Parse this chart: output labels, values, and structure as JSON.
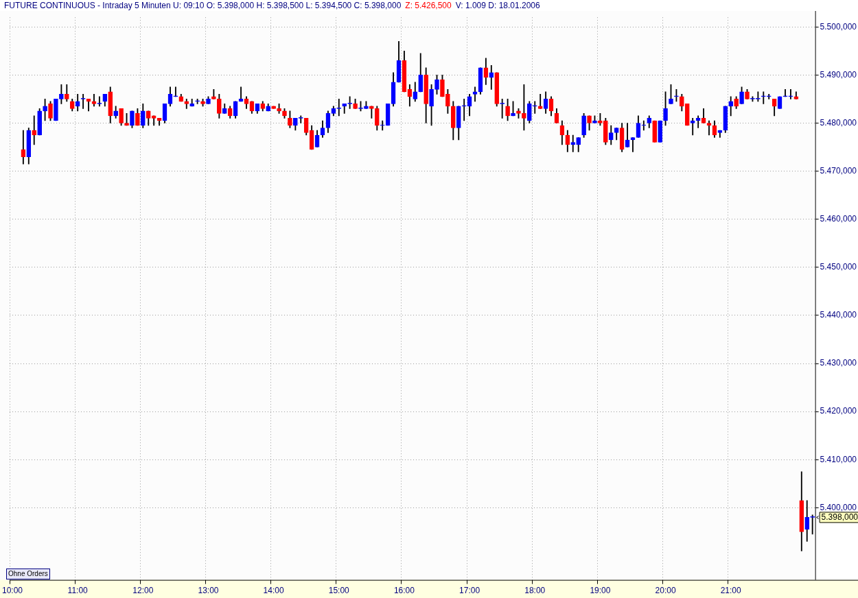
{
  "chart_data": {
    "type": "candlestick",
    "title": "FUTURE CONTINUOUS - Intraday 5 Minuten  U: 09:10  O: 5.398,000  H: 5.398,500  L: 5.394,500  C: 5.398,000",
    "subtitle": "Z: 5.426,500",
    "annotations": [
      "5.398,000",
      "V: 1.009  D: 18.01.2006",
      "Ohne Orders"
    ],
    "categories": [
      "10:00",
      null,
      null,
      null,
      null,
      null,
      null,
      null,
      null,
      null,
      null,
      null,
      "11:00",
      null,
      null,
      null,
      null,
      null,
      null,
      null,
      null,
      null,
      null,
      null,
      "12:00",
      null,
      null,
      null,
      null,
      null,
      null,
      null,
      null,
      null,
      null,
      null,
      "13:00",
      null,
      null,
      null,
      null,
      null,
      null,
      null,
      null,
      null,
      null,
      null,
      "14:00",
      null,
      null,
      null,
      null,
      null,
      null,
      null,
      null,
      null,
      null,
      null,
      "15:00",
      null,
      null,
      null,
      null,
      null,
      null,
      null,
      null,
      null,
      null,
      null,
      "16:00",
      null,
      null,
      null,
      null,
      null,
      null,
      null,
      null,
      null,
      null,
      null,
      "17:00",
      null,
      null,
      null,
      null,
      null,
      null,
      null,
      null,
      null,
      null,
      null,
      "18:00",
      null,
      null,
      null,
      null,
      null,
      null,
      null,
      null,
      null,
      null,
      null,
      "19:00",
      null,
      null,
      null,
      null,
      null,
      null,
      null,
      null,
      null,
      null,
      null,
      "20:00",
      null,
      null,
      null,
      null,
      null,
      null,
      null,
      null,
      null,
      null,
      null,
      "21:00",
      null,
      null,
      null,
      null,
      null,
      null,
      null,
      null,
      null,
      null,
      null,
      null,
      null,
      null,
      null
    ],
    "ohlc": [
      null,
      null,
      [
        5474.5,
        5478.5,
        5471.5,
        5473
      ],
      [
        5473,
        5479,
        5471.5,
        5478.5
      ],
      [
        5478.5,
        5481.5,
        5475.5,
        5477.5
      ],
      [
        5477.5,
        5483,
        5477.5,
        5482.5
      ],
      [
        5482.5,
        5485,
        5480.5,
        5483.5
      ],
      [
        5484,
        5484.5,
        5480.5,
        5481
      ],
      [
        5480.5,
        5485,
        5480.5,
        5485
      ],
      [
        5485,
        5488,
        5484,
        5486
      ],
      [
        5486,
        5488,
        5484.5,
        5485
      ],
      [
        5484.5,
        5485,
        5482.5,
        5483
      ],
      [
        5483.5,
        5486,
        5482.5,
        5484.5
      ],
      [
        5485,
        5486,
        5483,
        5485
      ],
      [
        5485,
        5485,
        5482.5,
        5484.5
      ],
      [
        5484.5,
        5486,
        5483.5,
        5484
      ],
      [
        5484,
        5485.5,
        5483.5,
        5484
      ],
      [
        5484.5,
        5486,
        5483.5,
        5486
      ],
      [
        5486.5,
        5487.5,
        5480,
        5481.5
      ],
      [
        5481.5,
        5483.5,
        5481,
        5482.5
      ],
      [
        5483,
        5483,
        5479.5,
        5480
      ],
      [
        5480,
        5482,
        5479.5,
        5479.5
      ],
      [
        5479.5,
        5482.5,
        5479,
        5482.5
      ],
      [
        5482,
        5483,
        5479.5,
        5479.5
      ],
      [
        5479.5,
        5484,
        5479,
        5482.5
      ],
      [
        5482.5,
        5482.5,
        5479.5,
        5481
      ],
      [
        5481.5,
        5481.5,
        5479.5,
        5481
      ],
      [
        5481,
        5481,
        5479.5,
        5480.5
      ],
      [
        5480.5,
        5484,
        5480,
        5484
      ],
      [
        5484,
        5487.5,
        5483.5,
        5486
      ],
      [
        5485.5,
        5487.5,
        5485.5,
        5485.5
      ],
      [
        5485.5,
        5486,
        5484.5,
        5484.5
      ],
      [
        5484.5,
        5485,
        5483,
        5484
      ],
      [
        5483.5,
        5485,
        5483.5,
        5484
      ],
      [
        5484.5,
        5485,
        5484,
        5484.5
      ],
      [
        5484.5,
        5485,
        5483.5,
        5484
      ],
      [
        5484,
        5485.5,
        5484,
        5485
      ],
      [
        5485.5,
        5487,
        5485,
        5485
      ],
      [
        5485,
        5486,
        5481,
        5482
      ],
      [
        5482,
        5484,
        5482,
        5483
      ],
      [
        5483,
        5483.5,
        5481,
        5481.5
      ],
      [
        5481.5,
        5484.5,
        5481,
        5484.5
      ],
      [
        5484.5,
        5487.5,
        5484.5,
        5485
      ],
      [
        5485,
        5485.5,
        5483,
        5484
      ],
      [
        5484.5,
        5484.5,
        5482,
        5482.5
      ],
      [
        5482.5,
        5484,
        5482,
        5484
      ],
      [
        5484,
        5484.5,
        5482.5,
        5483
      ],
      [
        5482.5,
        5484,
        5482.5,
        5483.5
      ],
      [
        5483.5,
        5483.5,
        5483,
        5483
      ],
      [
        5483,
        5484,
        5482,
        5482.5
      ],
      [
        5482.5,
        5483,
        5481,
        5481.5
      ],
      [
        5481,
        5482.5,
        5479,
        5479.5
      ],
      [
        5479.5,
        5481,
        5478.5,
        5481
      ],
      [
        5481,
        5481.5,
        5480,
        5481
      ],
      [
        5481,
        5481,
        5477.5,
        5478
      ],
      [
        5478.5,
        5479.5,
        5474.5,
        5474.5
      ],
      [
        5475,
        5478.5,
        5475,
        5477.5
      ],
      [
        5477.5,
        5480.5,
        5477,
        5479
      ],
      [
        5479,
        5482.5,
        5478,
        5482
      ],
      [
        5482,
        5483.5,
        5481.5,
        5483
      ],
      [
        5483,
        5485,
        5481.5,
        5483
      ],
      [
        5483.5,
        5484,
        5482,
        5484
      ],
      [
        5484,
        5485.5,
        5483,
        5484
      ],
      [
        5484,
        5485,
        5483,
        5483
      ],
      [
        5483,
        5484.5,
        5482.5,
        5483
      ],
      [
        5483,
        5484.5,
        5483,
        5483.5
      ],
      [
        5483.5,
        5483.5,
        5481,
        5483
      ],
      [
        5483,
        5483.5,
        5478.5,
        5479.5
      ],
      [
        5479.5,
        5480.5,
        5478.5,
        5479.5
      ],
      [
        5479.5,
        5484,
        5479.5,
        5484
      ],
      [
        5484,
        5490.5,
        5483.5,
        5488.5
      ],
      [
        5488.5,
        5497,
        5488.5,
        5493
      ],
      [
        5493,
        5495,
        5486.5,
        5486.5
      ],
      [
        5487,
        5488,
        5483.5,
        5485.5
      ],
      [
        5485,
        5488.5,
        5484.5,
        5486.5
      ],
      [
        5486.5,
        5494.5,
        5486.5,
        5490
      ],
      [
        5490,
        5491.5,
        5480,
        5484
      ],
      [
        5483.5,
        5488,
        5479.5,
        5487
      ],
      [
        5487,
        5490,
        5486,
        5489
      ],
      [
        5489,
        5490,
        5485.5,
        5485.5
      ],
      [
        5486,
        5487,
        5482,
        5483.5
      ],
      [
        5483.5,
        5484.5,
        5476.5,
        5479
      ],
      [
        5479,
        5483.5,
        5476.5,
        5483.5
      ],
      [
        5483.5,
        5485,
        5480.5,
        5483.5
      ],
      [
        5483.5,
        5486,
        5481.5,
        5485.5
      ],
      [
        5486,
        5487.5,
        5484.5,
        5486.5
      ],
      [
        5486.5,
        5491.5,
        5486,
        5491.5
      ],
      [
        5491.5,
        5493.5,
        5488,
        5489.5
      ],
      [
        5489.5,
        5492,
        5487,
        5490.5
      ],
      [
        5490.5,
        5490.5,
        5483.5,
        5484
      ],
      [
        5484,
        5485,
        5481,
        5484
      ],
      [
        5483.5,
        5485,
        5480.5,
        5481.5
      ],
      [
        5481.5,
        5484.5,
        5481.5,
        5482
      ],
      [
        5482.5,
        5483,
        5481,
        5482
      ],
      [
        5482,
        5488,
        5478.5,
        5481
      ],
      [
        5480.5,
        5484.5,
        5480,
        5484
      ],
      [
        5483.5,
        5484.5,
        5482,
        5483.5
      ],
      [
        5483.5,
        5486,
        5483,
        5483
      ],
      [
        5483,
        5486.5,
        5482,
        5485
      ],
      [
        5485,
        5485.5,
        5481.5,
        5482.5
      ],
      [
        5482,
        5483,
        5480,
        5480
      ],
      [
        5479.5,
        5480.5,
        5475.5,
        5477.5
      ],
      [
        5477.5,
        5478.5,
        5474,
        5475.5
      ],
      [
        5475.5,
        5477.5,
        5474,
        5476
      ],
      [
        5475.5,
        5477,
        5474,
        5477
      ],
      [
        5477.5,
        5482,
        5477,
        5481.5
      ],
      [
        5481.5,
        5481.5,
        5478.5,
        5480
      ],
      [
        5480,
        5481.5,
        5480,
        5480.5
      ],
      [
        5480.5,
        5482,
        5479.5,
        5480
      ],
      [
        5480.5,
        5481,
        5475.5,
        5476
      ],
      [
        5476.5,
        5479.5,
        5475.5,
        5478
      ],
      [
        5478,
        5479,
        5476.5,
        5479
      ],
      [
        5479,
        5480,
        5474,
        5474.5
      ],
      [
        5475,
        5480,
        5475,
        5476.5
      ],
      [
        5476.5,
        5477,
        5474,
        5477
      ],
      [
        5477,
        5481.5,
        5477,
        5480
      ],
      [
        5479.5,
        5480.5,
        5478.5,
        5479.5
      ],
      [
        5480,
        5481.5,
        5479,
        5481
      ],
      [
        5480.5,
        5480.5,
        5476,
        5476
      ],
      [
        5476,
        5480.5,
        5476,
        5480.5
      ],
      [
        5480.5,
        5486.5,
        5479.5,
        5483
      ],
      [
        5484,
        5488,
        5484,
        5485
      ],
      [
        5485.5,
        5487,
        5484.5,
        5485.5
      ],
      [
        5485.5,
        5486,
        5482.5,
        5483.5
      ],
      [
        5484,
        5484,
        5479.5,
        5479.5
      ],
      [
        5480,
        5481,
        5477.5,
        5480.5
      ],
      [
        5480.5,
        5481.5,
        5479,
        5481
      ],
      [
        5481,
        5483,
        5480,
        5480
      ],
      [
        5480,
        5480.5,
        5477.5,
        5479.5
      ],
      [
        5479.5,
        5480.5,
        5477,
        5477.5
      ],
      [
        5478,
        5478.5,
        5477,
        5478.5
      ],
      [
        5478.5,
        5483.5,
        5478,
        5483.5
      ],
      [
        5483.5,
        5485.5,
        5481.5,
        5484.5
      ],
      [
        5485,
        5485.5,
        5483,
        5483.5
      ],
      [
        5484,
        5487.5,
        5484,
        5486.5
      ],
      [
        5486.5,
        5487,
        5485,
        5485
      ],
      [
        5485,
        5485.5,
        5484.5,
        5485
      ],
      [
        5485,
        5486.5,
        5484.5,
        5485
      ],
      [
        5485.5,
        5486.5,
        5484,
        5485.5
      ],
      [
        5485.5,
        5486,
        5485,
        5485.5
      ],
      [
        5485,
        5485,
        5481.5,
        5483.5
      ],
      [
        5483,
        5485.5,
        5483,
        5485.5
      ],
      [
        5485.5,
        5487,
        5485.5,
        5485.5
      ],
      [
        5485.5,
        5487,
        5485,
        5485.5
      ],
      [
        5485.5,
        5486.5,
        5485,
        5485
      ],
      [
        5401.5,
        5407.5,
        5391,
        5395
      ],
      [
        5395.5,
        5401.5,
        5393,
        5398
      ],
      [
        5398,
        5398.5,
        5394.5,
        5398
      ]
    ],
    "colors": [
      null,
      null,
      "#ff0000",
      "#0000ff",
      "#ff0000",
      "#0000ff",
      "#0000ff",
      "#ff0000",
      "#0000ff",
      "#0000ff",
      "#ff0000",
      "#ff0000",
      "#0000ff",
      "#0000ff",
      "#ff0000",
      "#ff0000",
      "#0000ff",
      "#0000ff",
      "#ff0000",
      "#0000ff",
      "#ff0000",
      "#ff0000",
      "#0000ff",
      "#ff0000",
      "#0000ff",
      "#ff0000",
      "#ff0000",
      "#ff0000",
      "#0000ff",
      "#0000ff",
      "#0000ff",
      "#ff0000",
      "#ff0000",
      "#0000ff",
      "#0000ff",
      "#ff0000",
      "#0000ff",
      "#ff0000",
      "#ff0000",
      "#0000ff",
      "#ff0000",
      "#0000ff",
      "#0000ff",
      "#ff0000",
      "#ff0000",
      "#0000ff",
      "#ff0000",
      "#0000ff",
      "#ff0000",
      "#ff0000",
      "#ff0000",
      "#ff0000",
      "#0000ff",
      "#0000ff",
      "#ff0000",
      "#ff0000",
      "#0000ff",
      "#0000ff",
      "#0000ff",
      "#0000ff",
      "#0000ff",
      "#0000ff",
      "#0000ff",
      "#ff0000",
      "#0000ff",
      "#0000ff",
      "#ff0000",
      "#ff0000",
      "#0000ff",
      "#0000ff",
      "#0000ff",
      "#0000ff",
      "#ff0000",
      "#ff0000",
      "#0000ff",
      "#0000ff",
      "#ff0000",
      "#0000ff",
      "#0000ff",
      "#ff0000",
      "#ff0000",
      "#ff0000",
      "#0000ff",
      "#0000ff",
      "#0000ff",
      "#0000ff",
      "#0000ff",
      "#ff0000",
      "#0000ff",
      "#ff0000",
      "#0000ff",
      "#ff0000",
      "#0000ff",
      "#ff0000",
      "#ff0000",
      "#0000ff",
      "#0000ff",
      "#ff0000",
      "#0000ff",
      "#ff0000",
      "#ff0000",
      "#ff0000",
      "#ff0000",
      "#0000ff",
      "#0000ff",
      "#0000ff",
      "#ff0000",
      "#0000ff",
      "#ff0000",
      "#ff0000",
      "#0000ff",
      "#0000ff",
      "#ff0000",
      "#0000ff",
      "#0000ff",
      "#0000ff",
      "#0000ff",
      "#0000ff",
      "#ff0000",
      "#0000ff",
      "#0000ff",
      "#0000ff",
      "#0000ff",
      "#ff0000",
      "#ff0000",
      "#0000ff",
      "#0000ff",
      "#ff0000",
      "#ff0000",
      "#ff0000",
      "#0000ff",
      "#0000ff",
      "#0000ff",
      "#ff0000",
      "#0000ff",
      "#ff0000",
      "#0000ff",
      "#0000ff",
      "#0000ff",
      "#0000ff",
      "#ff0000",
      "#0000ff",
      "#0000ff",
      "#0000ff",
      "#ff0000",
      "#ff0000",
      "#0000ff",
      "#0000ff"
    ],
    "ylim": [
      5385,
      5502
    ],
    "yticks": [
      {
        "value": 5400,
        "label": "5.400,000"
      },
      {
        "value": 5410,
        "label": "5.410,000"
      },
      {
        "value": 5420,
        "label": "5.420,000"
      },
      {
        "value": 5430,
        "label": "5.430,000"
      },
      {
        "value": 5440,
        "label": "5.440,000"
      },
      {
        "value": 5450,
        "label": "5.450,000"
      },
      {
        "value": 5460,
        "label": "5.460,000"
      },
      {
        "value": 5470,
        "label": "5.470,000"
      },
      {
        "value": 5480,
        "label": "5.480,000"
      },
      {
        "value": 5490,
        "label": "5.490,000"
      },
      {
        "value": 5500,
        "label": "5.500,000"
      }
    ],
    "grid": true,
    "legend": false
  }
}
